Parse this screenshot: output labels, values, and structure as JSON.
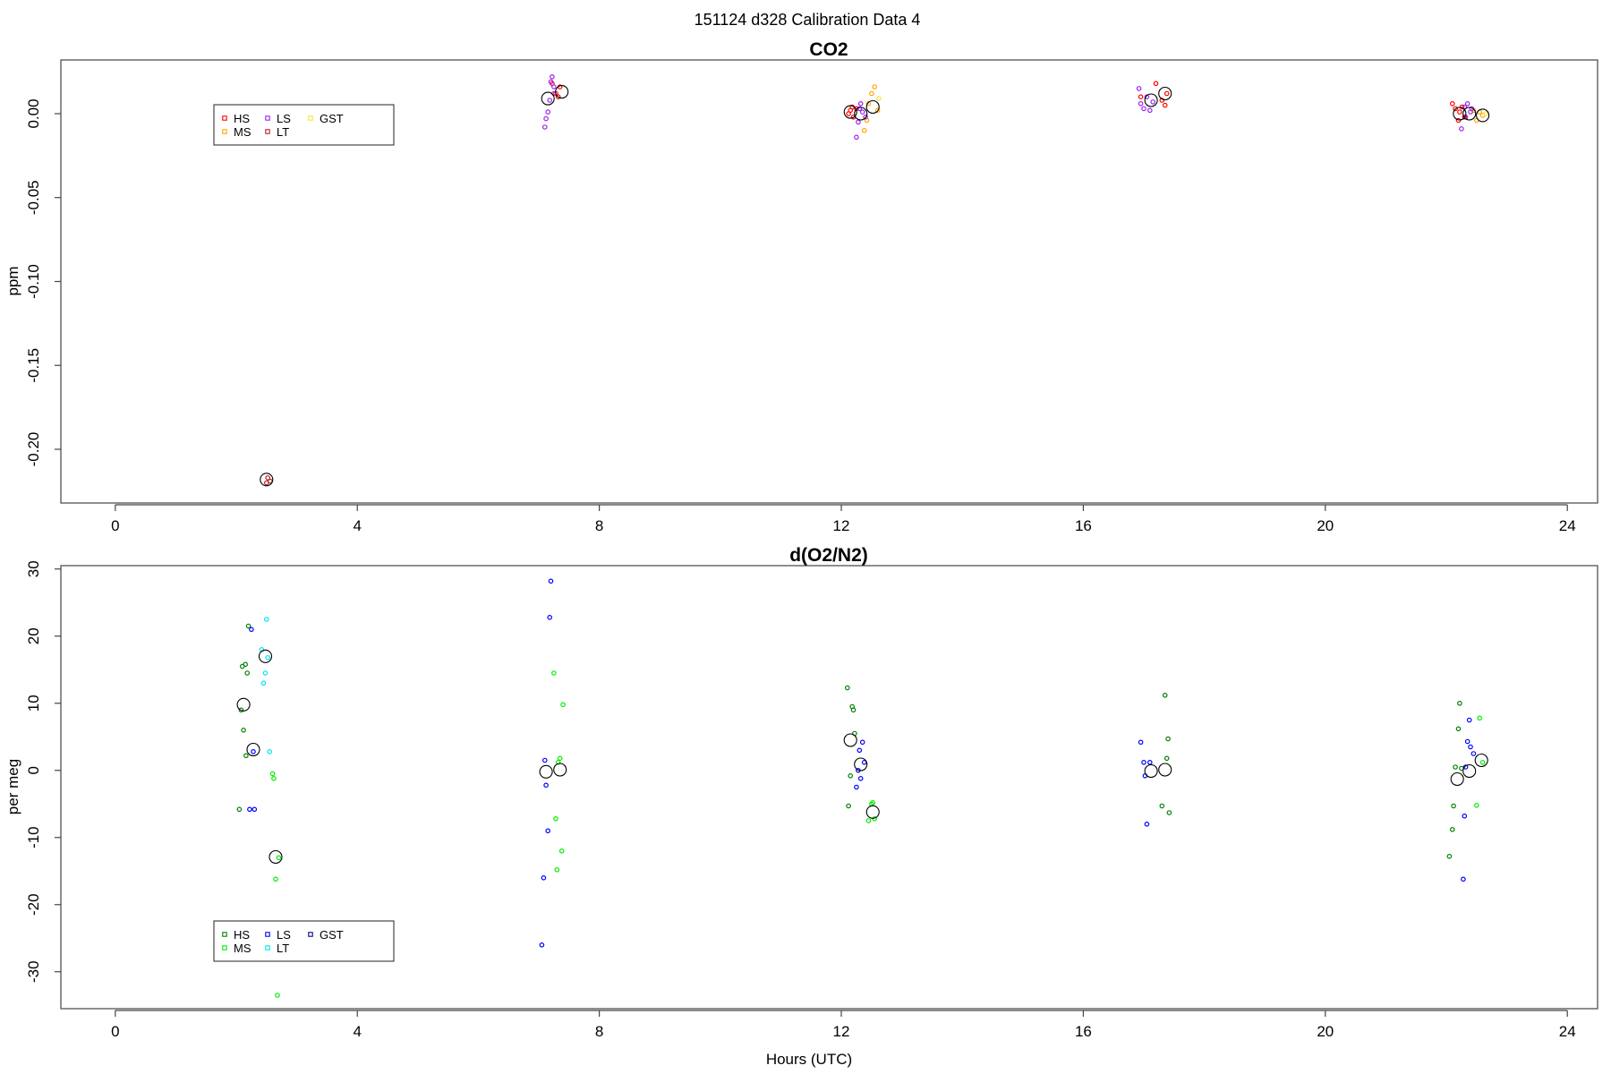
{
  "figure_title": "151124   d328   Calibration Data 4",
  "chart_data": [
    {
      "type": "scatter",
      "title": "CO2",
      "xlabel": "",
      "ylabel": "ppm",
      "xlim": [
        -0.9,
        24.5
      ],
      "ylim": [
        -0.232,
        0.032
      ],
      "xticks": [
        0,
        4,
        8,
        12,
        16,
        20,
        24
      ],
      "yticks": [
        0.0,
        -0.05,
        -0.1,
        -0.15,
        -0.2
      ],
      "ytick_labels": [
        "0.00",
        "-0.05",
        "-0.10",
        "-0.15",
        "-0.20"
      ],
      "legend": {
        "position": "top-left",
        "entries": [
          {
            "label": "HS",
            "color": "#ff0000"
          },
          {
            "label": "LS",
            "color": "#a020f0"
          },
          {
            "label": "GST",
            "color": "#ffe135"
          },
          {
            "label": "MS",
            "color": "#ffa500"
          },
          {
            "label": "LT",
            "color": "#b22222"
          }
        ]
      },
      "series": [
        {
          "name": "HS",
          "color": "#ff0000",
          "x": [
            7.22,
            7.28,
            7.32,
            7.35,
            12.12,
            12.15,
            12.18,
            12.2,
            12.25,
            16.95,
            17.2,
            17.3,
            17.35,
            17.38,
            22.1,
            22.15,
            22.2,
            22.22,
            22.26,
            22.3
          ],
          "y": [
            0.018,
            0.012,
            0.01,
            0.016,
            0.0,
            0.002,
            0.004,
            -0.002,
            0.003,
            0.01,
            0.018,
            0.008,
            0.005,
            0.012,
            0.006,
            0.003,
            -0.004,
            0.001,
            0.004,
            -0.002
          ]
        },
        {
          "name": "MS",
          "color": "#ffa500",
          "x": [
            12.38,
            12.42,
            12.45,
            12.5,
            12.55,
            12.6,
            22.45,
            22.5,
            22.55,
            22.6
          ],
          "y": [
            -0.01,
            -0.004,
            0.006,
            0.012,
            0.016,
            0.002,
            0.002,
            -0.004,
            0.001,
            -0.001
          ]
        },
        {
          "name": "LS",
          "color": "#a020f0",
          "x": [
            7.1,
            7.12,
            7.15,
            7.18,
            7.2,
            7.22,
            7.25,
            7.25,
            12.25,
            12.28,
            12.3,
            12.32,
            12.35,
            12.4,
            16.92,
            16.95,
            17.0,
            17.05,
            17.1,
            17.15,
            22.25,
            22.3,
            22.32,
            22.35,
            22.4,
            22.42
          ],
          "y": [
            -0.008,
            -0.003,
            0.001,
            0.008,
            0.019,
            0.022,
            0.016,
            0.012,
            -0.014,
            -0.005,
            0.003,
            0.006,
            0.001,
            -0.002,
            0.015,
            0.006,
            0.003,
            0.01,
            0.002,
            0.007,
            -0.009,
            0.004,
            -0.002,
            0.006,
            0.001,
            0.003
          ]
        },
        {
          "name": "LT",
          "color": "#b22222",
          "x": [
            2.5,
            2.52,
            2.56
          ],
          "y": [
            -0.22,
            -0.217,
            -0.219
          ]
        },
        {
          "name": "GST",
          "color": "#ffe135",
          "x": [
            12.62,
            22.65
          ],
          "y": [
            0.009,
            0.0
          ]
        },
        {
          "name": "mean",
          "color": "#000000",
          "x": [
            2.5,
            7.15,
            7.38,
            12.15,
            12.32,
            12.52,
            17.12,
            17.35,
            22.22,
            22.38,
            22.6
          ],
          "y": [
            -0.218,
            0.009,
            0.013,
            0.001,
            0.0,
            0.004,
            0.008,
            0.012,
            0.0,
            0.0,
            -0.001
          ]
        }
      ]
    },
    {
      "type": "scatter",
      "title": "d(O2/N2)",
      "xlabel": "Hours (UTC)",
      "ylabel": "per meg",
      "xlim": [
        -0.9,
        24.5
      ],
      "ylim": [
        -35.5,
        30.5
      ],
      "xticks": [
        0,
        4,
        8,
        12,
        16,
        20,
        24
      ],
      "yticks": [
        30,
        20,
        10,
        0,
        -10,
        -20,
        -30
      ],
      "ytick_labels": [
        "30",
        "20",
        "10",
        "0",
        "-10",
        "-20",
        "-30"
      ],
      "legend": {
        "position": "bottom-left",
        "entries": [
          {
            "label": "HS",
            "color": "#008000"
          },
          {
            "label": "LS",
            "color": "#0000ff"
          },
          {
            "label": "GST",
            "color": "#00008b"
          },
          {
            "label": "MS",
            "color": "#00ee00"
          },
          {
            "label": "LT",
            "color": "#00e5ee"
          }
        ]
      },
      "series": [
        {
          "name": "HS",
          "color": "#008000",
          "x": [
            2.05,
            2.08,
            2.1,
            2.12,
            2.15,
            2.16,
            2.18,
            2.2,
            12.1,
            12.12,
            12.15,
            12.18,
            12.2,
            12.22,
            17.3,
            17.35,
            17.38,
            17.4,
            17.42,
            22.05,
            22.1,
            22.12,
            22.15,
            22.2,
            22.22,
            22.25
          ],
          "y": [
            -5.8,
            9.0,
            15.5,
            6.0,
            15.8,
            2.2,
            14.5,
            21.5,
            12.3,
            -5.3,
            -0.8,
            9.5,
            9.0,
            5.5,
            -5.3,
            11.2,
            1.8,
            4.7,
            -6.3,
            -12.8,
            -8.8,
            -5.3,
            0.5,
            6.2,
            10.0,
            0.3
          ]
        },
        {
          "name": "MS",
          "color": "#00ee00",
          "x": [
            2.6,
            2.62,
            2.65,
            2.68,
            2.7,
            7.25,
            7.28,
            7.3,
            7.32,
            7.35,
            7.38,
            7.4,
            12.45,
            12.5,
            12.52,
            12.55,
            22.5,
            22.55,
            22.6
          ],
          "y": [
            -0.5,
            -1.2,
            -16.2,
            -33.5,
            -13.0,
            14.5,
            -7.2,
            -14.8,
            1.2,
            1.8,
            -12.0,
            9.8,
            -7.5,
            -5.0,
            -4.8,
            -7.2,
            -5.2,
            7.8,
            1.2
          ]
        },
        {
          "name": "LS",
          "color": "#0000ff",
          "x": [
            2.22,
            2.25,
            2.28,
            2.3,
            7.05,
            7.08,
            7.1,
            7.12,
            7.15,
            7.18,
            7.2,
            12.25,
            12.28,
            12.3,
            12.32,
            12.35,
            12.38,
            16.95,
            17.0,
            17.02,
            17.05,
            17.1,
            22.28,
            22.3,
            22.32,
            22.35,
            22.38,
            22.4,
            22.45
          ],
          "y": [
            -5.8,
            21.0,
            2.8,
            -5.8,
            -26.0,
            -16.0,
            1.5,
            -2.2,
            -9.0,
            22.8,
            28.2,
            -2.5,
            0.0,
            3.0,
            -1.2,
            4.2,
            1.2,
            4.2,
            1.2,
            -0.8,
            -8.0,
            1.2,
            -16.2,
            -6.8,
            0.5,
            4.3,
            7.5,
            3.5,
            2.5
          ]
        },
        {
          "name": "LT",
          "color": "#00e5ee",
          "x": [
            2.42,
            2.45,
            2.48,
            2.5,
            2.52,
            2.55
          ],
          "y": [
            18.0,
            13.0,
            14.5,
            22.5,
            16.8,
            2.8
          ]
        },
        {
          "name": "mean",
          "color": "#000000",
          "x": [
            2.12,
            2.28,
            2.48,
            2.65,
            7.12,
            7.35,
            12.15,
            12.32,
            12.52,
            17.12,
            17.35,
            22.18,
            22.38,
            22.58
          ],
          "y": [
            9.8,
            3.1,
            17.0,
            -12.9,
            -0.2,
            0.1,
            4.5,
            0.9,
            -6.2,
            -0.1,
            0.1,
            -1.3,
            -0.1,
            1.5
          ]
        }
      ]
    }
  ]
}
